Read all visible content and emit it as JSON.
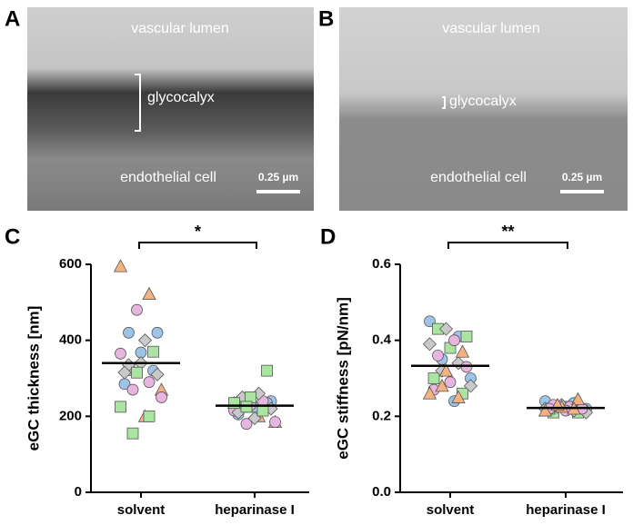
{
  "micrographs": [
    {
      "letter": "A",
      "top_label": "vascular lumen",
      "layer_label": "glycocalyx",
      "bottom_label": "endothelial cell",
      "scale_bar": "0.25 µm"
    },
    {
      "letter": "B",
      "top_label": "vascular lumen",
      "layer_label": "glycocalyx",
      "bottom_label": "endothelial cell",
      "scale_bar": "0.25 µm"
    }
  ],
  "chart_data": [
    {
      "type": "dot",
      "letter": "C",
      "ylabel": "eGC thickness [nm]",
      "categories": [
        "solvent",
        "heparinase I"
      ],
      "ylim": [
        0,
        600
      ],
      "yticks": [
        0,
        200,
        400,
        600
      ],
      "significance": "*",
      "means": [
        340,
        228
      ],
      "series": [
        {
          "marker": "triangle",
          "color": "#f4b183",
          "values": [
            [
              595,
              522,
              322,
              270,
              200
            ],
            [
              235,
              240,
              225,
              185,
              200
            ]
          ]
        },
        {
          "marker": "circle",
          "color": "#9dc3e6",
          "values": [
            [
              420,
              420,
              368,
              285,
              320
            ],
            [
              245,
              240,
              225,
              205,
              235
            ]
          ]
        },
        {
          "marker": "circle",
          "color": "#e8b4e0",
          "values": [
            [
              480,
              365,
              290,
              270,
              250
            ],
            [
              230,
              215,
              240,
              180,
              185
            ]
          ]
        },
        {
          "marker": "diamond",
          "color": "#c9c9c9",
          "values": [
            [
              400,
              335,
              310,
              340,
              315
            ],
            [
              260,
              250,
              220,
              195,
              210
            ]
          ]
        },
        {
          "marker": "square",
          "color": "#a9e5a0",
          "values": [
            [
              370,
              315,
              225,
              200,
              155
            ],
            [
              320,
              250,
              235,
              215,
              225
            ]
          ]
        }
      ]
    },
    {
      "type": "dot",
      "letter": "D",
      "ylabel": "eGC stiffness [pN/nm]",
      "categories": [
        "solvent",
        "heparinase I"
      ],
      "ylim": [
        0,
        0.6
      ],
      "yticks": [
        {
          "value": 0,
          "label": "0.0"
        },
        0.2,
        0.4,
        0.6
      ],
      "significance": "**",
      "means": [
        0.333,
        0.222
      ],
      "series": [
        {
          "marker": "circle",
          "color": "#9dc3e6",
          "values": [
            [
              0.45,
              0.41,
              0.35,
              0.3,
              0.24
            ],
            [
              0.24,
              0.235,
              0.225,
              0.22,
              0.22
            ]
          ]
        },
        {
          "marker": "square",
          "color": "#a9e5a0",
          "values": [
            [
              0.43,
              0.41,
              0.38,
              0.3,
              0.26
            ],
            [
              0.21,
              0.215,
              0.225,
              0.22,
              0.21
            ]
          ]
        },
        {
          "marker": "diamond",
          "color": "#c9c9c9",
          "values": [
            [
              0.43,
              0.39,
              0.34,
              0.32,
              0.28
            ],
            [
              0.23,
              0.22,
              0.215,
              0.225,
              0.21
            ]
          ]
        },
        {
          "marker": "circle",
          "color": "#e8b4e0",
          "values": [
            [
              0.4,
              0.36,
              0.33,
              0.29,
              0.27
            ],
            [
              0.225,
              0.23,
              0.22,
              0.215,
              0.22
            ]
          ]
        },
        {
          "marker": "triangle",
          "color": "#f4b183",
          "values": [
            [
              0.37,
              0.32,
              0.26,
              0.25,
              0.28
            ],
            [
              0.245,
              0.225,
              0.215,
              0.22,
              0.23
            ]
          ]
        }
      ]
    }
  ]
}
